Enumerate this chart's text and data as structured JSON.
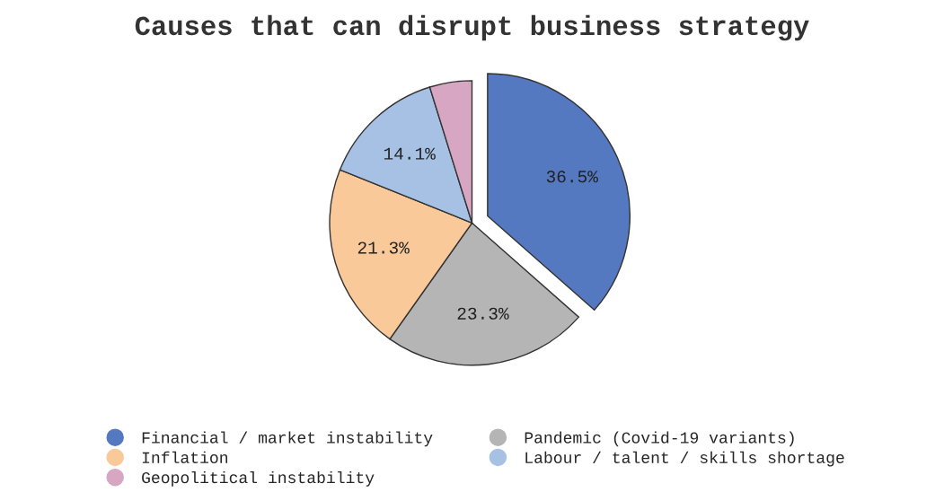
{
  "chart_data": {
    "type": "pie",
    "title": "Causes that can disrupt business strategy",
    "categories": [
      "Financial / market instability",
      "Pandemic (Covid-19 variants)",
      "Inflation",
      "Labour / talent / skills shortage",
      "Geopolitical instability"
    ],
    "values": [
      36.5,
      23.3,
      21.3,
      14.1,
      4.8
    ],
    "value_labels": [
      "36.5%",
      "23.3%",
      "21.3%",
      "14.1%",
      null
    ],
    "colors": [
      "#5479c0",
      "#b5b5b5",
      "#f9c99a",
      "#a7c1e5",
      "#d6a6c2"
    ],
    "legend": "bottom"
  }
}
